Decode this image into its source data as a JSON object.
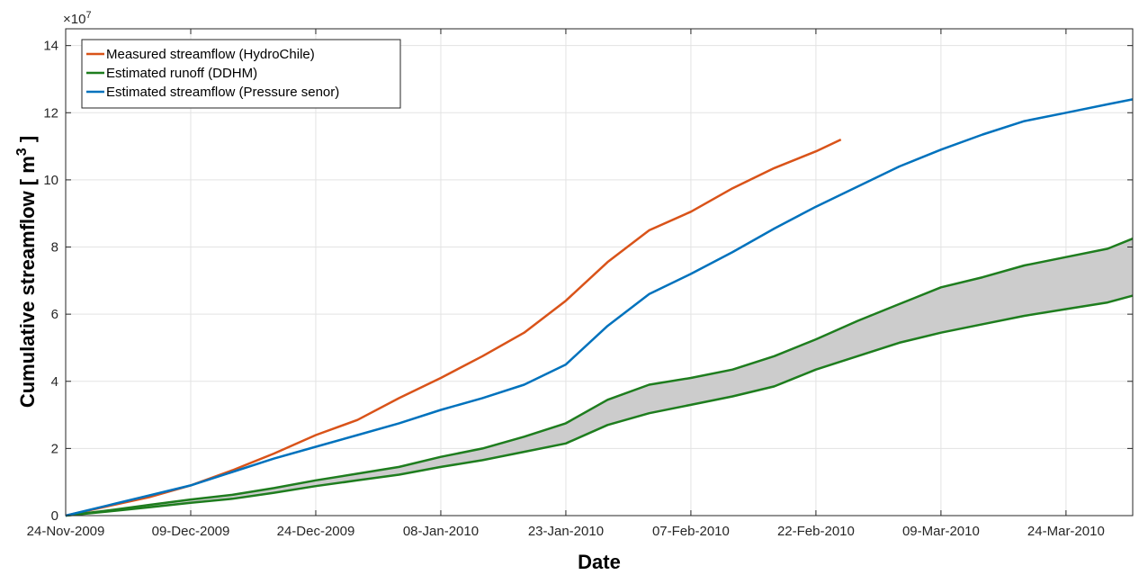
{
  "chart_data": {
    "type": "line",
    "xlabel": "Date",
    "ylabel": "Cumulative streamflow [ m",
    "ylabel_superscript": "3",
    "ylabel_close": " ]",
    "y_exponent_label": "×10",
    "y_exponent_power": "7",
    "xlim": [
      "2009-11-24",
      "2010-04-01"
    ],
    "ylim": [
      0,
      14.5
    ],
    "y_units_scale": 10000000,
    "x_ticks": [
      "2009-11-24",
      "2009-12-09",
      "2009-12-24",
      "2010-01-08",
      "2010-01-23",
      "2010-02-07",
      "2010-02-22",
      "2010-03-09",
      "2010-03-24"
    ],
    "x_tick_labels": [
      "24-Nov-2009",
      "09-Dec-2009",
      "24-Dec-2009",
      "08-Jan-2010",
      "23-Jan-2010",
      "07-Feb-2010",
      "22-Feb-2010",
      "09-Mar-2010",
      "24-Mar-2010"
    ],
    "y_ticks": [
      0,
      2,
      4,
      6,
      8,
      10,
      12,
      14
    ],
    "y_tick_labels": [
      "0",
      "2",
      "4",
      "6",
      "8",
      "10",
      "12",
      "14"
    ],
    "grid": true,
    "legend_position": "top-left",
    "series": [
      {
        "name": "Measured streamflow (HydroChile)",
        "color": "#d95319",
        "x": [
          "2009-11-24",
          "2009-11-29",
          "2009-12-04",
          "2009-12-09",
          "2009-12-14",
          "2009-12-19",
          "2009-12-24",
          "2009-12-29",
          "2010-01-03",
          "2010-01-08",
          "2010-01-13",
          "2010-01-18",
          "2010-01-23",
          "2010-01-28",
          "2010-02-02",
          "2010-02-07",
          "2010-02-12",
          "2010-02-17",
          "2010-02-22",
          "2010-02-25"
        ],
        "values": [
          0,
          0.28,
          0.55,
          0.9,
          1.35,
          1.85,
          2.4,
          2.85,
          3.5,
          4.1,
          4.75,
          5.45,
          6.4,
          7.55,
          8.5,
          9.05,
          9.75,
          10.35,
          10.85,
          11.2
        ]
      },
      {
        "name": "Estimated runoff (DDHM)",
        "color": "#1e7d1e",
        "band_color": "#cccccc",
        "x": [
          "2009-11-24",
          "2009-11-29",
          "2009-12-04",
          "2009-12-09",
          "2009-12-14",
          "2009-12-19",
          "2009-12-24",
          "2009-12-29",
          "2010-01-03",
          "2010-01-08",
          "2010-01-13",
          "2010-01-18",
          "2010-01-23",
          "2010-01-28",
          "2010-02-02",
          "2010-02-07",
          "2010-02-12",
          "2010-02-17",
          "2010-02-22",
          "2010-02-27",
          "2010-03-04",
          "2010-03-09",
          "2010-03-14",
          "2010-03-19",
          "2010-03-24",
          "2010-03-29",
          "2010-04-01"
        ],
        "upper": [
          0,
          0.15,
          0.32,
          0.48,
          0.62,
          0.82,
          1.05,
          1.25,
          1.45,
          1.75,
          2.0,
          2.35,
          2.75,
          3.45,
          3.9,
          4.1,
          4.35,
          4.75,
          5.25,
          5.8,
          6.3,
          6.8,
          7.1,
          7.45,
          7.7,
          7.95,
          8.25
        ],
        "lower": [
          0,
          0.12,
          0.25,
          0.38,
          0.5,
          0.68,
          0.88,
          1.05,
          1.22,
          1.45,
          1.65,
          1.9,
          2.15,
          2.7,
          3.05,
          3.3,
          3.55,
          3.85,
          4.35,
          4.75,
          5.15,
          5.45,
          5.7,
          5.95,
          6.15,
          6.35,
          6.55
        ]
      },
      {
        "name": "Estimated streamflow (Pressure senor)",
        "color": "#0072bd",
        "x": [
          "2009-11-24",
          "2009-11-29",
          "2009-12-04",
          "2009-12-09",
          "2009-12-14",
          "2009-12-19",
          "2009-12-24",
          "2009-12-29",
          "2010-01-03",
          "2010-01-08",
          "2010-01-13",
          "2010-01-18",
          "2010-01-23",
          "2010-01-28",
          "2010-02-02",
          "2010-02-07",
          "2010-02-12",
          "2010-02-17",
          "2010-02-22",
          "2010-02-27",
          "2010-03-04",
          "2010-03-09",
          "2010-03-14",
          "2010-03-19",
          "2010-03-24",
          "2010-03-29",
          "2010-04-01"
        ],
        "values": [
          0,
          0.3,
          0.6,
          0.9,
          1.3,
          1.7,
          2.05,
          2.4,
          2.75,
          3.15,
          3.5,
          3.9,
          4.5,
          5.65,
          6.6,
          7.2,
          7.85,
          8.55,
          9.2,
          9.8,
          10.4,
          10.9,
          11.35,
          11.75,
          12.0,
          12.25,
          12.4
        ]
      }
    ]
  }
}
